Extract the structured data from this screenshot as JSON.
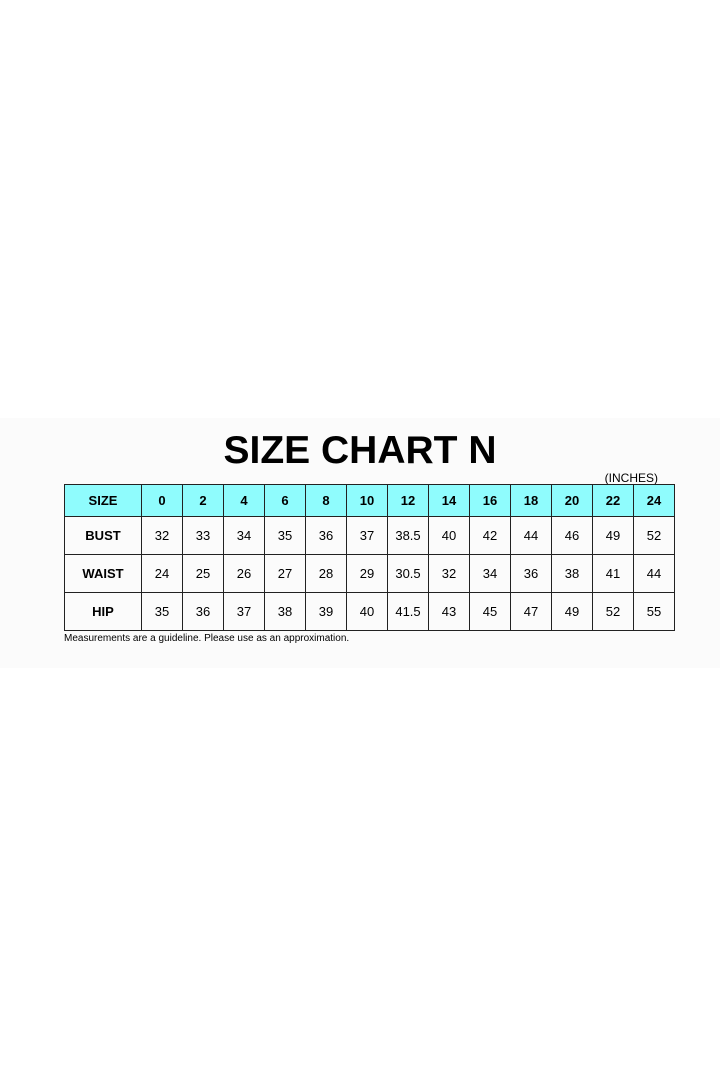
{
  "title": "SIZE CHART N",
  "units": "(INCHES)",
  "table": {
    "header_label": "SIZE",
    "sizes": [
      "0",
      "2",
      "4",
      "6",
      "8",
      "10",
      "12",
      "14",
      "16",
      "18",
      "20",
      "22",
      "24"
    ],
    "rows": [
      {
        "label": "BUST",
        "values": [
          "32",
          "33",
          "34",
          "35",
          "36",
          "37",
          "38.5",
          "40",
          "42",
          "44",
          "46",
          "49",
          "52"
        ]
      },
      {
        "label": "WAIST",
        "values": [
          "24",
          "25",
          "26",
          "27",
          "28",
          "29",
          "30.5",
          "32",
          "34",
          "36",
          "38",
          "41",
          "44"
        ]
      },
      {
        "label": "HIP",
        "values": [
          "35",
          "36",
          "37",
          "38",
          "39",
          "40",
          "41.5",
          "43",
          "45",
          "47",
          "49",
          "52",
          "55"
        ]
      }
    ],
    "header_color": "#8ffcfd"
  },
  "footnote": "Measurements are a guideline. Please use as an approximation."
}
